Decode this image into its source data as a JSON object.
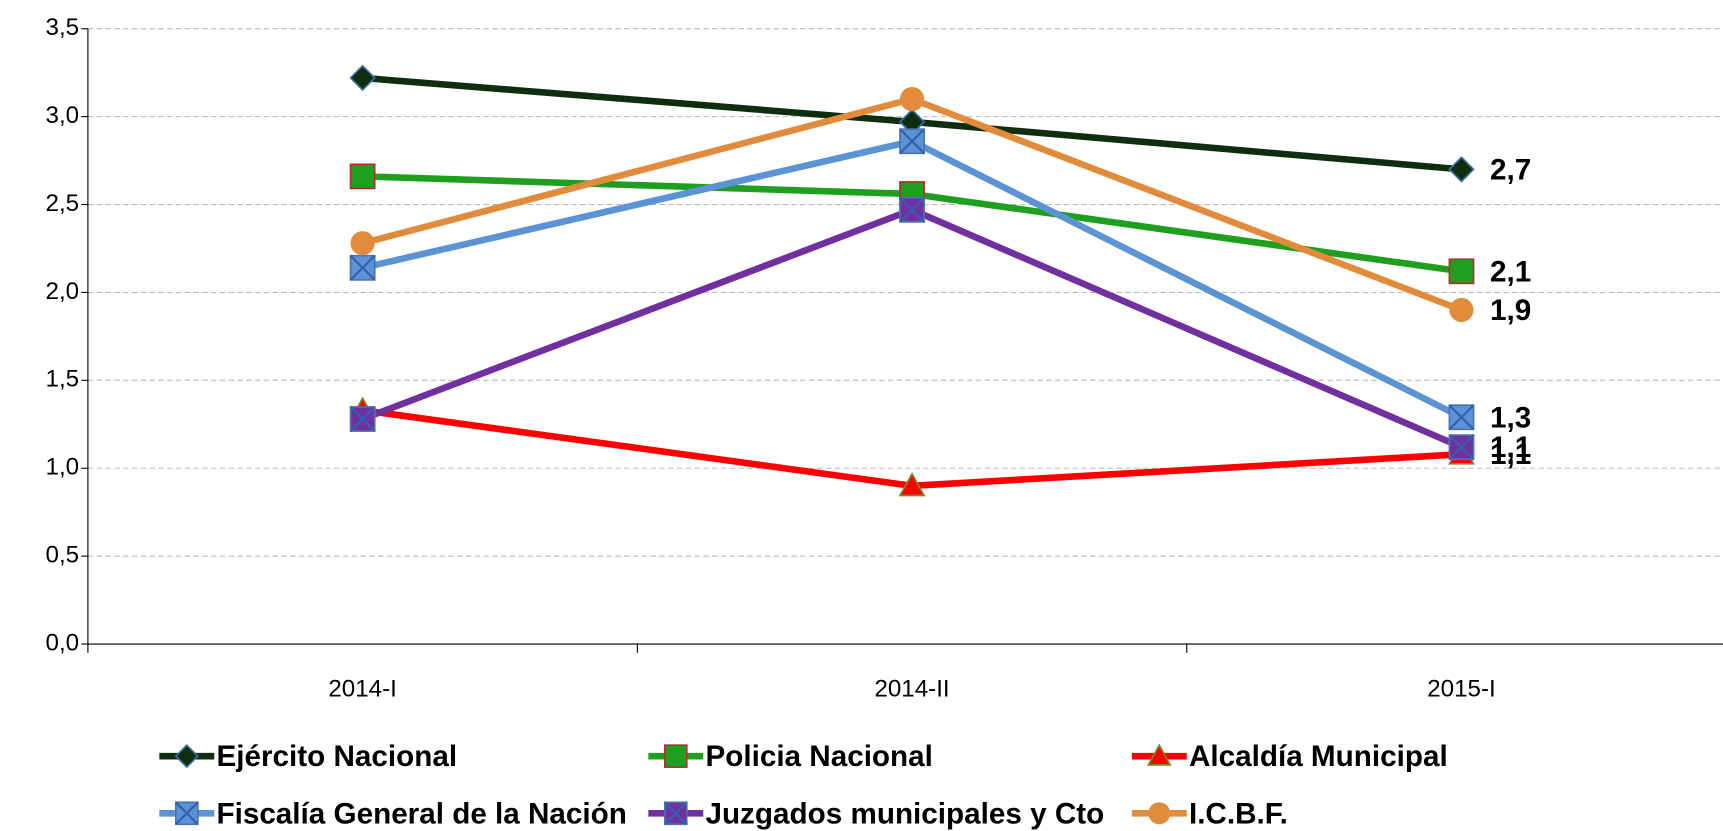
{
  "chart_data": {
    "type": "line",
    "categories": [
      "2014-I",
      "2014-II",
      "2015-I"
    ],
    "series": [
      {
        "name": "Ejército Nacional",
        "color": "#0f2e0f",
        "marker": "diamond",
        "values": [
          3.22,
          2.97,
          2.7
        ],
        "value_labels": [
          null,
          null,
          "2,7"
        ]
      },
      {
        "name": "Policia Nacional",
        "color": "#1ea01e",
        "marker": "square",
        "values": [
          2.66,
          2.56,
          2.12
        ],
        "value_labels": [
          null,
          null,
          "2,1"
        ]
      },
      {
        "name": "Alcaldía Municipal",
        "color": "#ff0000",
        "marker": "triangle",
        "values": [
          1.33,
          0.9,
          1.08
        ],
        "value_labels": [
          null,
          null,
          "1,1"
        ]
      },
      {
        "name": "Fiscalía General de la Nación",
        "color": "#5b93d4",
        "marker": "xsquare",
        "values": [
          2.14,
          2.86,
          1.29
        ],
        "value_labels": [
          null,
          null,
          "1,3"
        ]
      },
      {
        "name": "Juzgados municipales y Cto",
        "color": "#7030a0",
        "marker": "xsquare",
        "values": [
          1.28,
          2.47,
          1.12
        ],
        "value_labels": [
          null,
          null,
          "1,1"
        ]
      },
      {
        "name": "I.C.B.F.",
        "color": "#e08c3c",
        "marker": "circle",
        "values": [
          2.28,
          3.1,
          1.9
        ],
        "value_labels": [
          null,
          null,
          "1,9"
        ]
      }
    ],
    "ylim": [
      0,
      3.5
    ],
    "yticks": [
      {
        "value": 0,
        "label": "0,0"
      },
      {
        "value": 0.5,
        "label": "0,5"
      },
      {
        "value": 1,
        "label": "1,0"
      },
      {
        "value": 1.5,
        "label": "1,5"
      },
      {
        "value": 2,
        "label": "2,0"
      },
      {
        "value": 2.5,
        "label": "2,5"
      },
      {
        "value": 3,
        "label": "3,0"
      },
      {
        "value": 3.5,
        "label": "3,5"
      }
    ],
    "grid": true
  }
}
